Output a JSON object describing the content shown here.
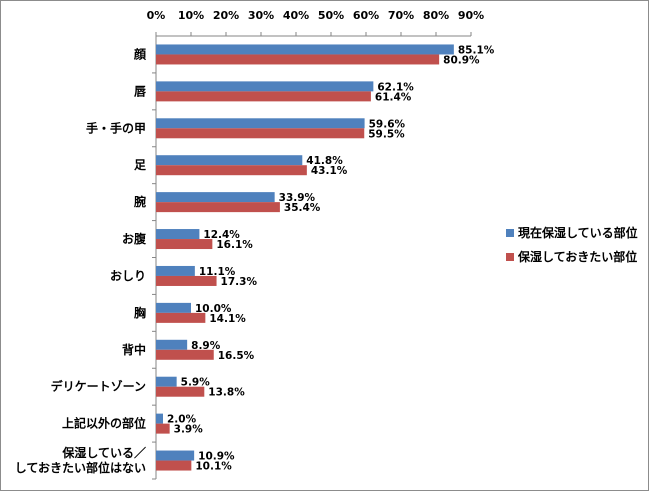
{
  "chart_data": {
    "type": "bar",
    "orientation": "horizontal",
    "categories": [
      "顔",
      "唇",
      "手・手の甲",
      "足",
      "腕",
      "お腹",
      "おしり",
      "胸",
      "背中",
      "デリケートゾーン",
      "上記以外の部位",
      "保湿している／\nしておきたい部位はない"
    ],
    "series": [
      {
        "name": "現在保湿している部位",
        "color": "#4f81bd",
        "values": [
          85.1,
          62.1,
          59.6,
          41.8,
          33.9,
          12.4,
          11.1,
          10.0,
          8.9,
          5.9,
          2.0,
          10.9
        ]
      },
      {
        "name": "保湿しておきたい部位",
        "color": "#c0504d",
        "values": [
          80.9,
          61.4,
          59.5,
          43.1,
          35.4,
          16.1,
          17.3,
          14.1,
          16.5,
          13.8,
          3.9,
          10.1
        ]
      }
    ],
    "xlim": [
      0,
      90
    ],
    "x_ticks": [
      "0%",
      "10%",
      "20%",
      "30%",
      "40%",
      "50%",
      "60%",
      "70%",
      "80%",
      "90%"
    ],
    "value_suffix": "%",
    "grid": false,
    "axis_position": "top",
    "legend_position": "right"
  }
}
